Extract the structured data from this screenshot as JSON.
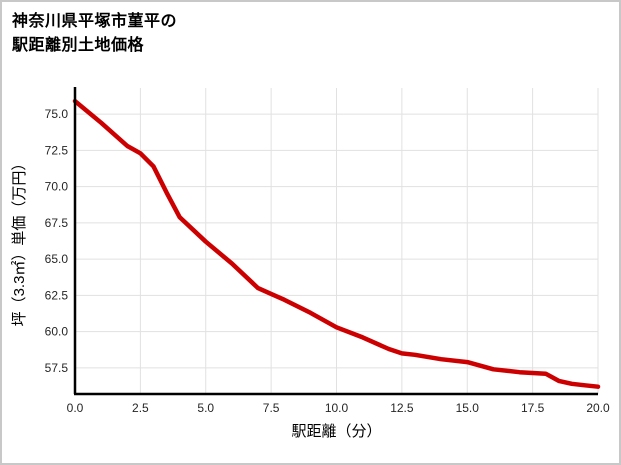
{
  "title": {
    "line1": "神奈川県平塚市菫平の",
    "line2": "駅距離別土地価格"
  },
  "chart_data": {
    "type": "line",
    "title": "神奈川県平塚市菫平の駅距離別土地価格",
    "xlabel": "駅距離（分）",
    "ylabel": "坪（3.3㎡）単価（万円）",
    "xlim": [
      0,
      20
    ],
    "ylim": [
      55.7,
      76.8
    ],
    "xticks": [
      0,
      2.5,
      5,
      7.5,
      10,
      12.5,
      15,
      17.5,
      20
    ],
    "yticks": [
      57.5,
      60,
      62.5,
      65,
      67.5,
      70,
      72.5,
      75
    ],
    "grid": true,
    "legend": false,
    "line_color": "#cc0000",
    "series": [
      {
        "color": "#cc0000",
        "points": [
          [
            0,
            75.9
          ],
          [
            1,
            74.4
          ],
          [
            2,
            72.8
          ],
          [
            2.5,
            72.3
          ],
          [
            3,
            71.4
          ],
          [
            3.5,
            69.6
          ],
          [
            4,
            67.9
          ],
          [
            5,
            66.2
          ],
          [
            6,
            64.7
          ],
          [
            7,
            63.0
          ],
          [
            7.5,
            62.6
          ],
          [
            8,
            62.2
          ],
          [
            9,
            61.3
          ],
          [
            10,
            60.3
          ],
          [
            11,
            59.6
          ],
          [
            12,
            58.8
          ],
          [
            12.5,
            58.5
          ],
          [
            13,
            58.4
          ],
          [
            14,
            58.1
          ],
          [
            15,
            57.9
          ],
          [
            16,
            57.4
          ],
          [
            17,
            57.2
          ],
          [
            18,
            57.1
          ],
          [
            18.5,
            56.6
          ],
          [
            19,
            56.4
          ],
          [
            19.5,
            56.3
          ],
          [
            20,
            56.2
          ]
        ]
      }
    ]
  }
}
